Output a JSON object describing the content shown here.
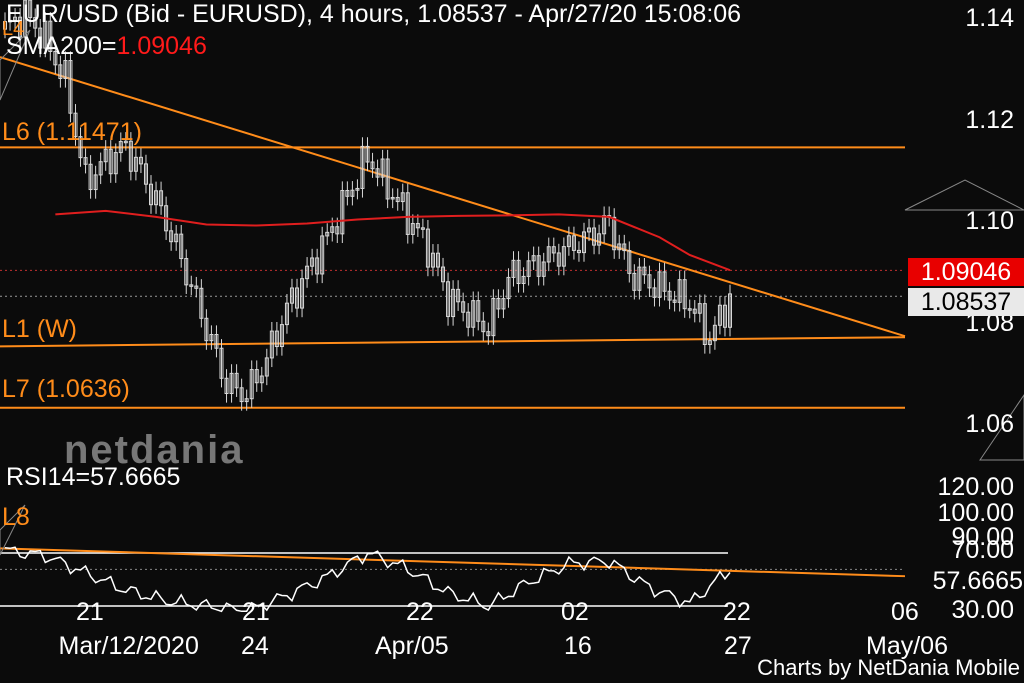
{
  "header": {
    "title": "EUR/USD (Bid - EURUSD),  4 hours, 1.08537 - Apr/27/20 15:08:06",
    "sma_label": "SMA200=",
    "sma_value": "1.09046",
    "rsi_label": "RSI14=57.6665"
  },
  "levels": {
    "l6": "L6 (1.11471)",
    "l1": "L1 (W)",
    "l7": "L7 (1.0636)",
    "l8": "L8",
    "l4": "L4"
  },
  "price_tags": {
    "sma": "1.09046",
    "last": "1.08537"
  },
  "logo_text": "netdania",
  "credit": "Charts by NetDania Mobile",
  "colors": {
    "background": "#0b0b0b",
    "candle": "#d8d8d8",
    "sma": "#e01e1e",
    "trendline": "#ff8c1a",
    "rsi": "#ffffff"
  },
  "chart_data": [
    {
      "type": "line",
      "title": "EUR/USD (Bid - EURUSD),  4 hours, 1.08537 - Apr/27/20 15:08:06",
      "y_ticks": [
        "1.14",
        "1.12",
        "1.10",
        "1.08",
        "1.06"
      ],
      "ylim": [
        1.055,
        1.145
      ],
      "x_ticks_top": [
        "21",
        "21",
        "22",
        "02",
        "22",
        "06"
      ],
      "x_ticks_bottom": [
        "Mar/12/2020",
        "24",
        "Apr/05",
        "16",
        "27",
        "May/06"
      ],
      "series": [
        {
          "name": "EUR/USD",
          "x": [
            0,
            4,
            8,
            12,
            16,
            20,
            24,
            28,
            32,
            36,
            40,
            44,
            48,
            52,
            56,
            60,
            64,
            68,
            72,
            76,
            80,
            84,
            88,
            92,
            96,
            100,
            104,
            108,
            112,
            116,
            120,
            124,
            128,
            132,
            136,
            140,
            144
          ],
          "values": [
            1.138,
            1.141,
            1.136,
            1.128,
            1.108,
            1.112,
            1.115,
            1.108,
            1.1,
            1.09,
            1.079,
            1.068,
            1.066,
            1.073,
            1.083,
            1.09,
            1.097,
            1.105,
            1.113,
            1.107,
            1.101,
            1.095,
            1.085,
            1.082,
            1.079,
            1.089,
            1.091,
            1.093,
            1.095,
            1.097,
            1.1,
            1.09,
            1.088,
            1.086,
            1.084,
            1.077,
            1.085
          ]
        },
        {
          "name": "SMA200",
          "x": [
            10,
            20,
            30,
            40,
            50,
            60,
            70,
            80,
            90,
            100,
            110,
            120,
            130,
            136,
            144
          ],
          "values": [
            1.1015,
            1.1022,
            1.101,
            1.0995,
            1.0993,
            1.0997,
            1.1005,
            1.101,
            1.1012,
            1.1013,
            1.1015,
            1.101,
            1.097,
            1.0935,
            1.0905
          ]
        }
      ],
      "annotations": [
        "SMA200=1.09046",
        "L6 (1.11471)",
        "L1 (W)",
        "L7 (1.0636)",
        "1.09046",
        "1.08537"
      ]
    },
    {
      "type": "line",
      "title": "RSI14=57.6665",
      "y_ticks": [
        "120.00",
        "100.00",
        "90.00",
        "70.00",
        "57.6665",
        "30.00"
      ],
      "series": [
        {
          "name": "RSI14",
          "x": [
            0,
            8,
            16,
            24,
            32,
            40,
            48,
            56,
            64,
            72,
            80,
            88,
            96,
            104,
            112,
            120,
            128,
            136,
            144
          ],
          "values": [
            72,
            68,
            55,
            42,
            34,
            30,
            26,
            38,
            52,
            70,
            58,
            40,
            30,
            48,
            62,
            64,
            44,
            32,
            57.6665
          ]
        }
      ]
    }
  ]
}
